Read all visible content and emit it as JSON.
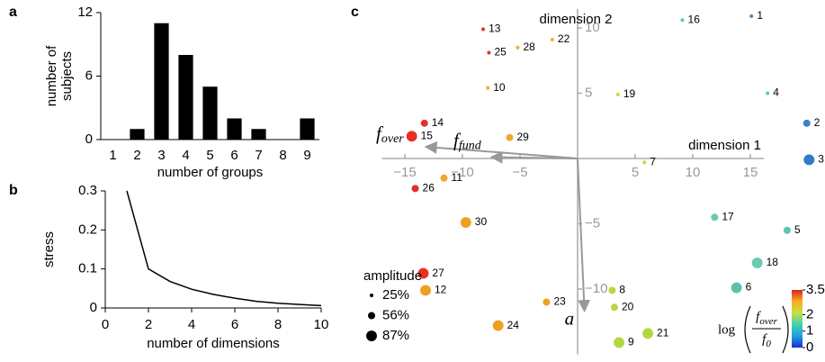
{
  "chart_data": [
    {
      "type": "bar",
      "panel": "a",
      "xlabel": "number of groups",
      "ylabel": [
        "number of",
        "subjects"
      ],
      "categories": [
        "1",
        "2",
        "3",
        "4",
        "5",
        "6",
        "7",
        "8",
        "9"
      ],
      "values": [
        0,
        1,
        11,
        8,
        5,
        2,
        1,
        0,
        2
      ],
      "color": "#000000",
      "ylim": [
        0,
        12
      ],
      "yticks": [
        0,
        6,
        12
      ]
    },
    {
      "type": "line",
      "panel": "b",
      "xlabel": "number of dimensions",
      "ylabel": "stress",
      "x": [
        1,
        2,
        3,
        4,
        5,
        6,
        7,
        8,
        9,
        10
      ],
      "values": [
        0.3,
        0.1,
        0.068,
        0.048,
        0.035,
        0.025,
        0.017,
        0.012,
        0.009,
        0.006
      ],
      "color": "#000000",
      "xlim": [
        0,
        10
      ],
      "xticks": [
        0,
        2,
        4,
        6,
        8,
        10
      ],
      "ylim": [
        0,
        0.3
      ],
      "yticks": [
        0,
        0.1,
        0.2,
        0.3
      ]
    },
    {
      "type": "scatter",
      "panel": "c",
      "xlabel": "dimension 1",
      "ylabel": "dimension 2",
      "labels": [
        "1",
        "2",
        "3",
        "4",
        "5",
        "6",
        "7",
        "8",
        "9",
        "10",
        "11",
        "12",
        "13",
        "14",
        "15",
        "16",
        "17",
        "18",
        "19",
        "20",
        "21",
        "22",
        "23",
        "24",
        "25",
        "26",
        "27",
        "28",
        "29",
        "30"
      ],
      "x": [
        15.1,
        19.9,
        20.1,
        16.5,
        18.2,
        13.8,
        5.8,
        3.0,
        3.6,
        -7.8,
        -11.6,
        -13.2,
        -8.2,
        -13.3,
        -14.4,
        9.1,
        11.9,
        15.6,
        3.5,
        3.2,
        6.1,
        -2.2,
        -2.7,
        -6.9,
        -7.7,
        -14.1,
        -13.4,
        -5.2,
        -5.9,
        -9.7
      ],
      "y": [
        10.9,
        2.7,
        -0.1,
        5.0,
        -5.5,
        -9.9,
        -0.3,
        -10.1,
        -14.1,
        5.4,
        -1.5,
        -10.1,
        9.9,
        2.7,
        1.7,
        10.6,
        -4.5,
        -8.0,
        4.9,
        -11.4,
        -13.4,
        9.1,
        -11.0,
        -12.8,
        8.1,
        -2.3,
        -8.8,
        8.5,
        1.6,
        -4.9
      ],
      "sizes": [
        25,
        56,
        87,
        25,
        56,
        87,
        25,
        56,
        87,
        25,
        56,
        87,
        25,
        56,
        87,
        25,
        56,
        87,
        25,
        56,
        87,
        25,
        56,
        87,
        25,
        56,
        87,
        25,
        56,
        87
      ],
      "colors": [
        "#3a8fc8",
        "#3a7fc8",
        "#2f7ac9",
        "#5fc9a8",
        "#5fc4b0",
        "#5ac0b0",
        "#c8d840",
        "#b8d840",
        "#b0d840",
        "#f0b030",
        "#f0a830",
        "#f0a020",
        "#e03030",
        "#e03030",
        "#e83020",
        "#5ac8b0",
        "#6cc8b0",
        "#6cc8b0",
        "#c8d840",
        "#b8d840",
        "#b0d840",
        "#f0b030",
        "#f0a020",
        "#f0a020",
        "#e03030",
        "#e03030",
        "#e83020",
        "#f0b030",
        "#f0a830",
        "#f0a020"
      ],
      "xlim": [
        -17,
        20.5
      ],
      "ylim": [
        -15,
        12
      ],
      "xticks": [
        {
          "value": -15,
          "label": "−15"
        },
        {
          "value": -10,
          "label": "−10"
        },
        {
          "value": -5,
          "label": "−5"
        },
        5,
        10,
        15
      ],
      "yticks": [
        10,
        5,
        {
          "value": -5,
          "label": "−5"
        },
        {
          "value": -10,
          "label": "−10"
        }
      ],
      "arrows": [
        {
          "label": "f",
          "sub": "over",
          "x": -13.2,
          "y": 0.9
        },
        {
          "label": "f",
          "sub": "fund",
          "x": -7.5,
          "y": 0.1
        },
        {
          "label": "a",
          "x": 0.6,
          "y": -11.7
        }
      ],
      "size_legend": {
        "title": "amplitude",
        "values": [
          25,
          56,
          87
        ],
        "labels": [
          "25%",
          "56%",
          "87%"
        ]
      },
      "colorbar": {
        "lim": [
          0,
          3.5
        ],
        "ticks": [
          0,
          1,
          2,
          3.5
        ],
        "colors": [
          "#1a2fd0",
          "#1f9ee0",
          "#40d0b0",
          "#c8e040",
          "#f8b020",
          "#e02020"
        ],
        "label": {
          "fn": "log",
          "num": "f",
          "num_sub": "over",
          "den": "f",
          "den_sub": "0"
        }
      }
    }
  ]
}
